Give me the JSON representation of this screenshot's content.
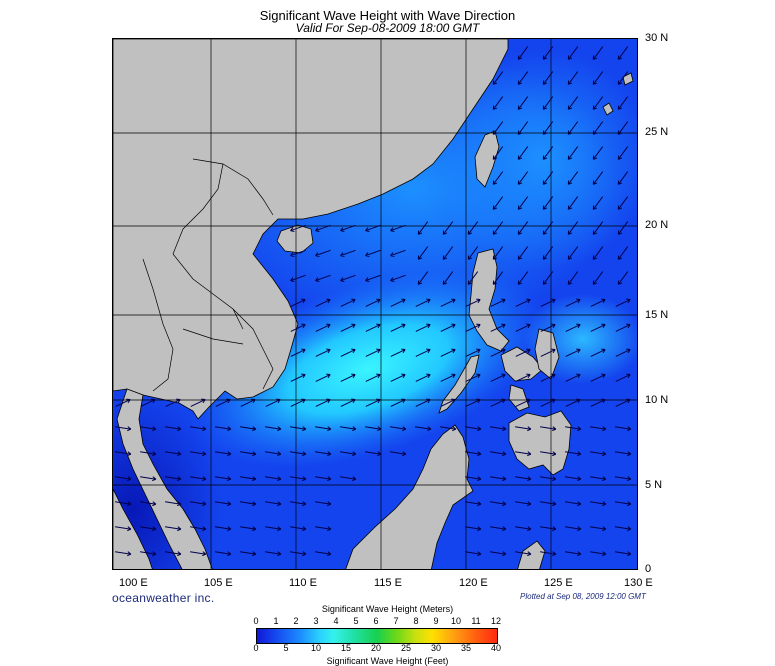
{
  "title": "Significant Wave Height with Wave Direction",
  "subtitle": "Valid For Sep-08-2009 18:00 GMT",
  "lat_labels": [
    "30 N",
    "25 N",
    "20 N",
    "15 N",
    "10 N",
    "5 N",
    "0"
  ],
  "lon_labels": [
    "100 E",
    "105 E",
    "110 E",
    "115 E",
    "120 E",
    "125 E",
    "130 E"
  ],
  "brand": "oceanweather inc.",
  "plotted": "Plotted at Sep 08, 2009 12:00 GMT",
  "colorbar": {
    "title_meters": "Significant Wave Height (Meters)",
    "title_feet": "Significant Wave Height (Feet)",
    "meter_ticks": [
      "0",
      "1",
      "2",
      "3",
      "4",
      "5",
      "6",
      "7",
      "8",
      "9",
      "10",
      "11",
      "12"
    ],
    "feet_ticks": [
      "0",
      "5",
      "10",
      "15",
      "20",
      "25",
      "30",
      "35",
      "40"
    ]
  },
  "colors": {
    "land": "#c0c0c0",
    "sea": "#1040f0",
    "arrow": "#00004a"
  },
  "map_extent": {
    "lon_min": 100,
    "lon_max": 130,
    "lat_min": 0,
    "lat_max": 30
  }
}
